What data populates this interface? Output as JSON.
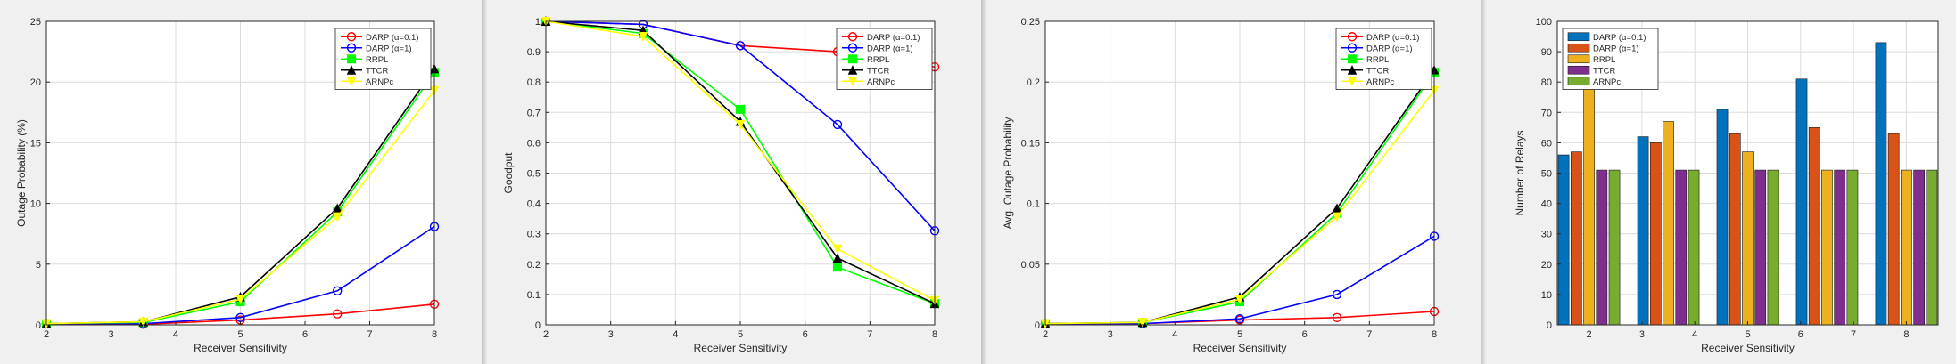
{
  "chart_data": [
    {
      "type": "line",
      "xlabel": "Receiver Sensitivity",
      "ylabel": "Outage Probability (%)",
      "xlim": [
        2,
        8
      ],
      "ylim": [
        0,
        25
      ],
      "xticks": [
        2,
        3,
        4,
        5,
        6,
        7,
        8
      ],
      "yticks": [
        0,
        5,
        10,
        15,
        20,
        25
      ],
      "grid": true,
      "legend_position": "top-right",
      "x": [
        2,
        3.5,
        5,
        6.5,
        8
      ],
      "series": [
        {
          "name": "DARP (α=0.1)",
          "color": "#ff0000",
          "marker": "circle",
          "values": [
            0.1,
            0.05,
            0.4,
            0.9,
            1.7
          ]
        },
        {
          "name": "DARP (α=1)",
          "color": "#0000ff",
          "marker": "circle",
          "values": [
            0.1,
            0.1,
            0.6,
            2.8,
            8.1
          ]
        },
        {
          "name": "RRPL",
          "color": "#00ff00",
          "marker": "square",
          "values": [
            0.1,
            0.2,
            1.9,
            9.3,
            20.8
          ]
        },
        {
          "name": "TTCR",
          "color": "#000000",
          "marker": "triangle",
          "values": [
            0.1,
            0.25,
            2.3,
            9.6,
            21.1
          ]
        },
        {
          "name": "ARNPc",
          "color": "#ffff00",
          "marker": "triangle-down",
          "values": [
            0.1,
            0.25,
            2.1,
            8.9,
            19.3
          ]
        }
      ]
    },
    {
      "type": "line",
      "xlabel": "Receiver Sensitivity",
      "ylabel": "Goodput",
      "xlim": [
        2,
        8
      ],
      "ylim": [
        0,
        1
      ],
      "xticks": [
        2,
        3,
        4,
        5,
        6,
        7,
        8
      ],
      "yticks": [
        0,
        0.1,
        0.2,
        0.3,
        0.4,
        0.5,
        0.6,
        0.7,
        0.8,
        0.9,
        1
      ],
      "grid": true,
      "legend_position": "top-right",
      "x": [
        2,
        3.5,
        5,
        6.5,
        8
      ],
      "series": [
        {
          "name": "DARP (α=0.1)",
          "color": "#ff0000",
          "marker": "circle",
          "values": [
            1.0,
            0.99,
            0.92,
            0.9,
            0.85
          ]
        },
        {
          "name": "DARP (α=1)",
          "color": "#0000ff",
          "marker": "circle",
          "values": [
            1.0,
            0.99,
            0.92,
            0.66,
            0.31
          ]
        },
        {
          "name": "RRPL",
          "color": "#00ff00",
          "marker": "square",
          "values": [
            1.0,
            0.96,
            0.71,
            0.19,
            0.07
          ]
        },
        {
          "name": "TTCR",
          "color": "#000000",
          "marker": "triangle",
          "values": [
            1.0,
            0.97,
            0.67,
            0.22,
            0.07
          ]
        },
        {
          "name": "ARNPc",
          "color": "#ffff00",
          "marker": "triangle-down",
          "values": [
            1.0,
            0.95,
            0.66,
            0.25,
            0.08
          ]
        }
      ]
    },
    {
      "type": "line",
      "xlabel": "Receiver Sensitivity",
      "ylabel": "Avg. Outage Probability",
      "xlim": [
        2,
        8
      ],
      "ylim": [
        0,
        0.25
      ],
      "xticks": [
        2,
        3,
        4,
        5,
        6,
        7,
        8
      ],
      "yticks": [
        0,
        0.05,
        0.1,
        0.15,
        0.2,
        0.25
      ],
      "grid": true,
      "legend_position": "top-right",
      "x": [
        2,
        3.5,
        5,
        6.5,
        8
      ],
      "series": [
        {
          "name": "DARP (α=0.1)",
          "color": "#ff0000",
          "marker": "circle",
          "values": [
            0.001,
            0.001,
            0.004,
            0.006,
            0.011
          ]
        },
        {
          "name": "DARP (α=1)",
          "color": "#0000ff",
          "marker": "circle",
          "values": [
            0.001,
            0.001,
            0.005,
            0.025,
            0.073
          ]
        },
        {
          "name": "RRPL",
          "color": "#00ff00",
          "marker": "square",
          "values": [
            0.001,
            0.002,
            0.019,
            0.092,
            0.208
          ]
        },
        {
          "name": "TTCR",
          "color": "#000000",
          "marker": "triangle",
          "values": [
            0.001,
            0.002,
            0.023,
            0.096,
            0.21
          ]
        },
        {
          "name": "ARNPc",
          "color": "#ffff00",
          "marker": "triangle-down",
          "values": [
            0.001,
            0.002,
            0.021,
            0.089,
            0.193
          ]
        }
      ]
    },
    {
      "type": "bar",
      "xlabel": "Receiver Sensitivity",
      "ylabel": "Number of Relays",
      "xlim": [
        1.4,
        8.6
      ],
      "ylim": [
        0,
        100
      ],
      "xticks": [
        2,
        3,
        4,
        5,
        6,
        7,
        8
      ],
      "yticks": [
        0,
        10,
        20,
        30,
        40,
        50,
        60,
        70,
        80,
        90,
        100
      ],
      "grid": true,
      "legend_position": "top-left",
      "x": [
        2,
        3.5,
        5,
        6.5,
        8
      ],
      "series": [
        {
          "name": "DARP (α=0.1)",
          "color": "#0072bd",
          "values": [
            56,
            62,
            71,
            81,
            93
          ]
        },
        {
          "name": "DARP (α=1)",
          "color": "#d95319",
          "values": [
            57,
            60,
            63,
            65,
            63
          ]
        },
        {
          "name": "RRPL",
          "color": "#edb120",
          "values": [
            82,
            67,
            57,
            51,
            51
          ]
        },
        {
          "name": "TTCR",
          "color": "#7e2f8e",
          "values": [
            51,
            51,
            51,
            51,
            51
          ]
        },
        {
          "name": "ARNPc",
          "color": "#77ac30",
          "values": [
            51,
            51,
            51,
            51,
            51
          ]
        }
      ]
    }
  ]
}
